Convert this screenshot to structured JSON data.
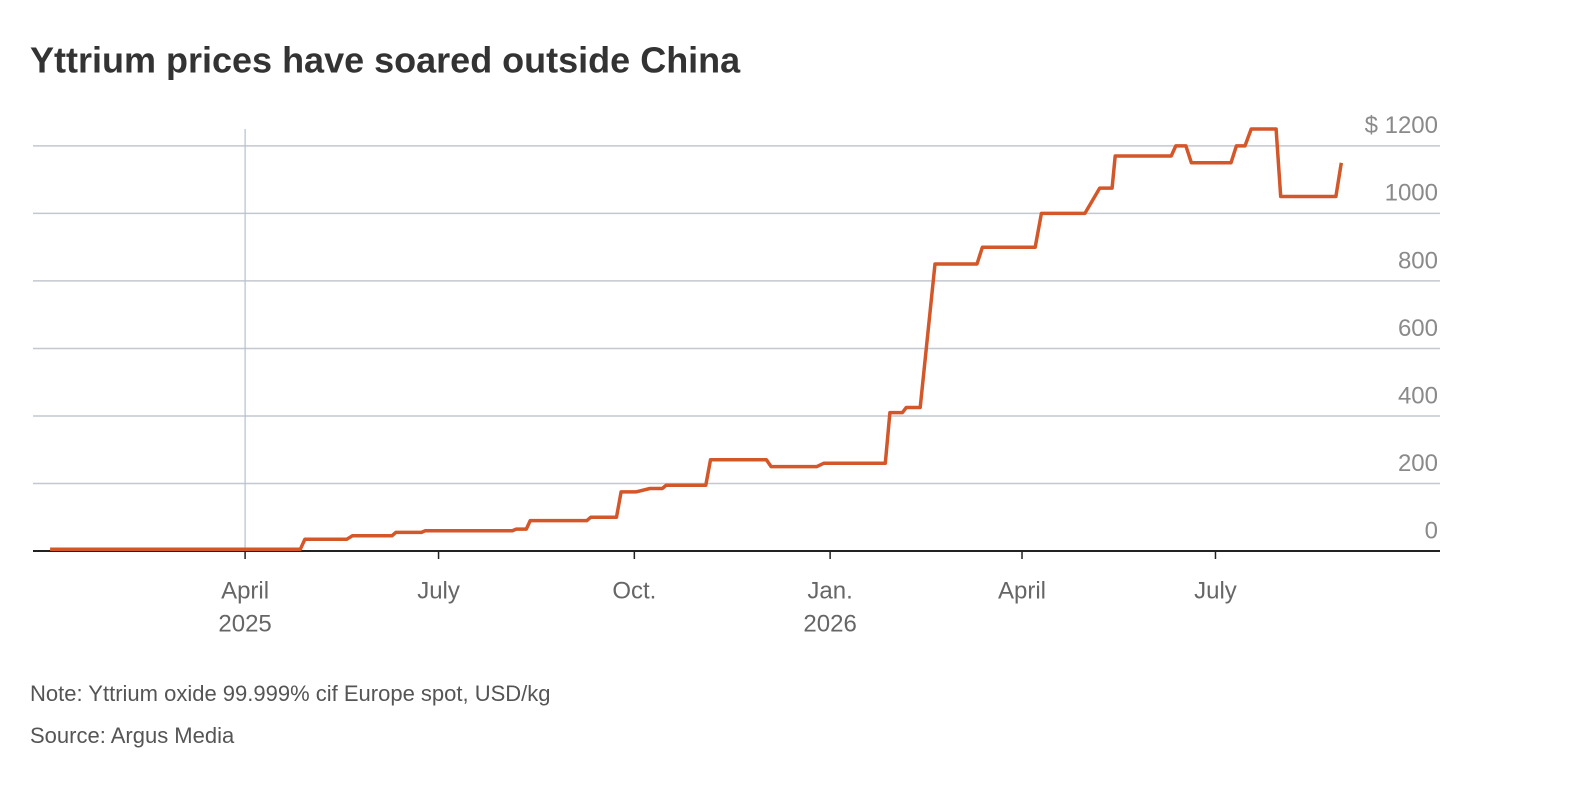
{
  "chart_data": {
    "type": "line",
    "title": "Yttrium prices have soared outside China",
    "note": "Note: Yttrium oxide 99.999% cif Europe spot, USD/kg",
    "source": "Source: Argus Media",
    "color": "#d4572a",
    "grid": true,
    "x": [
      2024.996,
      2025.318,
      2025.324,
      2025.378,
      2025.385,
      2025.436,
      2025.441,
      2025.474,
      2025.479,
      2025.591,
      2025.596,
      2025.609,
      2025.614,
      2025.687,
      2025.692,
      2025.725,
      2025.731,
      2025.75,
      2025.768,
      2025.784,
      2025.789,
      2025.84,
      2025.846,
      2025.918,
      2025.924,
      2025.983,
      2025.992,
      2026.071,
      2026.077,
      2026.093,
      2026.098,
      2026.116,
      2026.135,
      2026.189,
      2026.196,
      2026.264,
      2026.272,
      2026.328,
      2026.347,
      2026.363,
      2026.367,
      2026.439,
      2026.445,
      2026.458,
      2026.465,
      2026.516,
      2026.523,
      2026.534,
      2026.542,
      2026.574,
      2026.58,
      2026.651,
      2026.658
    ],
    "values": [
      5,
      5,
      35,
      35,
      45,
      45,
      55,
      55,
      60,
      60,
      65,
      65,
      90,
      90,
      100,
      100,
      175,
      175,
      185,
      185,
      195,
      195,
      270,
      270,
      250,
      250,
      260,
      260,
      410,
      410,
      425,
      425,
      850,
      850,
      900,
      900,
      1000,
      1000,
      1075,
      1075,
      1170,
      1170,
      1200,
      1200,
      1150,
      1150,
      1200,
      1200,
      1250,
      1250,
      1050,
      1050,
      1150
    ],
    "xlim": [
      2024.974,
      2026.785
    ],
    "xticks": [
      {
        "value": 2025.247,
        "label": [
          "April",
          "2025"
        ]
      },
      {
        "value": 2025.496,
        "label": [
          "July"
        ]
      },
      {
        "value": 2025.748,
        "label": [
          "Oct."
        ]
      },
      {
        "value": 2026.0,
        "label": [
          "Jan.",
          "2026"
        ]
      },
      {
        "value": 2026.247,
        "label": [
          "April"
        ]
      },
      {
        "value": 2026.496,
        "label": [
          "July"
        ]
      }
    ],
    "ylim": [
      0,
      1250
    ],
    "yticks": [
      0,
      200,
      400,
      600,
      800,
      1000,
      {
        "value": 1200,
        "label": "$ 1200"
      }
    ]
  }
}
